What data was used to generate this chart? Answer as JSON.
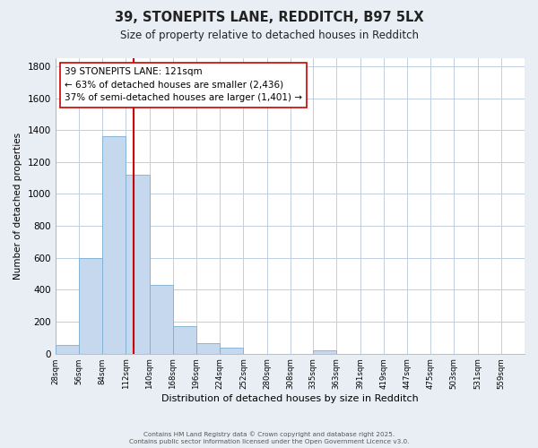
{
  "title": "39, STONEPITS LANE, REDDITCH, B97 5LX",
  "subtitle": "Size of property relative to detached houses in Redditch",
  "xlabel": "Distribution of detached houses by size in Redditch",
  "ylabel": "Number of detached properties",
  "bar_color": "#c5d8ed",
  "bar_edge_color": "#7bafd4",
  "bin_edges": [
    28,
    56,
    84,
    112,
    140,
    168,
    196,
    224,
    252,
    280,
    308,
    335,
    363,
    391,
    419,
    447,
    475,
    503,
    531,
    559,
    587
  ],
  "bar_heights": [
    55,
    600,
    1360,
    1120,
    430,
    170,
    65,
    35,
    0,
    0,
    0,
    20,
    0,
    0,
    0,
    0,
    0,
    0,
    0,
    0
  ],
  "vline_x": 121,
  "vline_color": "#cc0000",
  "ylim": [
    0,
    1850
  ],
  "yticks": [
    0,
    200,
    400,
    600,
    800,
    1000,
    1200,
    1400,
    1600,
    1800
  ],
  "annotation_title": "39 STONEPITS LANE: 121sqm",
  "annotation_line1": "← 63% of detached houses are smaller (2,436)",
  "annotation_line2": "37% of semi-detached houses are larger (1,401) →",
  "footer_line1": "Contains HM Land Registry data © Crown copyright and database right 2025.",
  "footer_line2": "Contains public sector information licensed under the Open Government Licence v3.0.",
  "background_color": "#e8eef4",
  "plot_bg_color": "#ffffff",
  "grid_color": "#c0cfe0"
}
